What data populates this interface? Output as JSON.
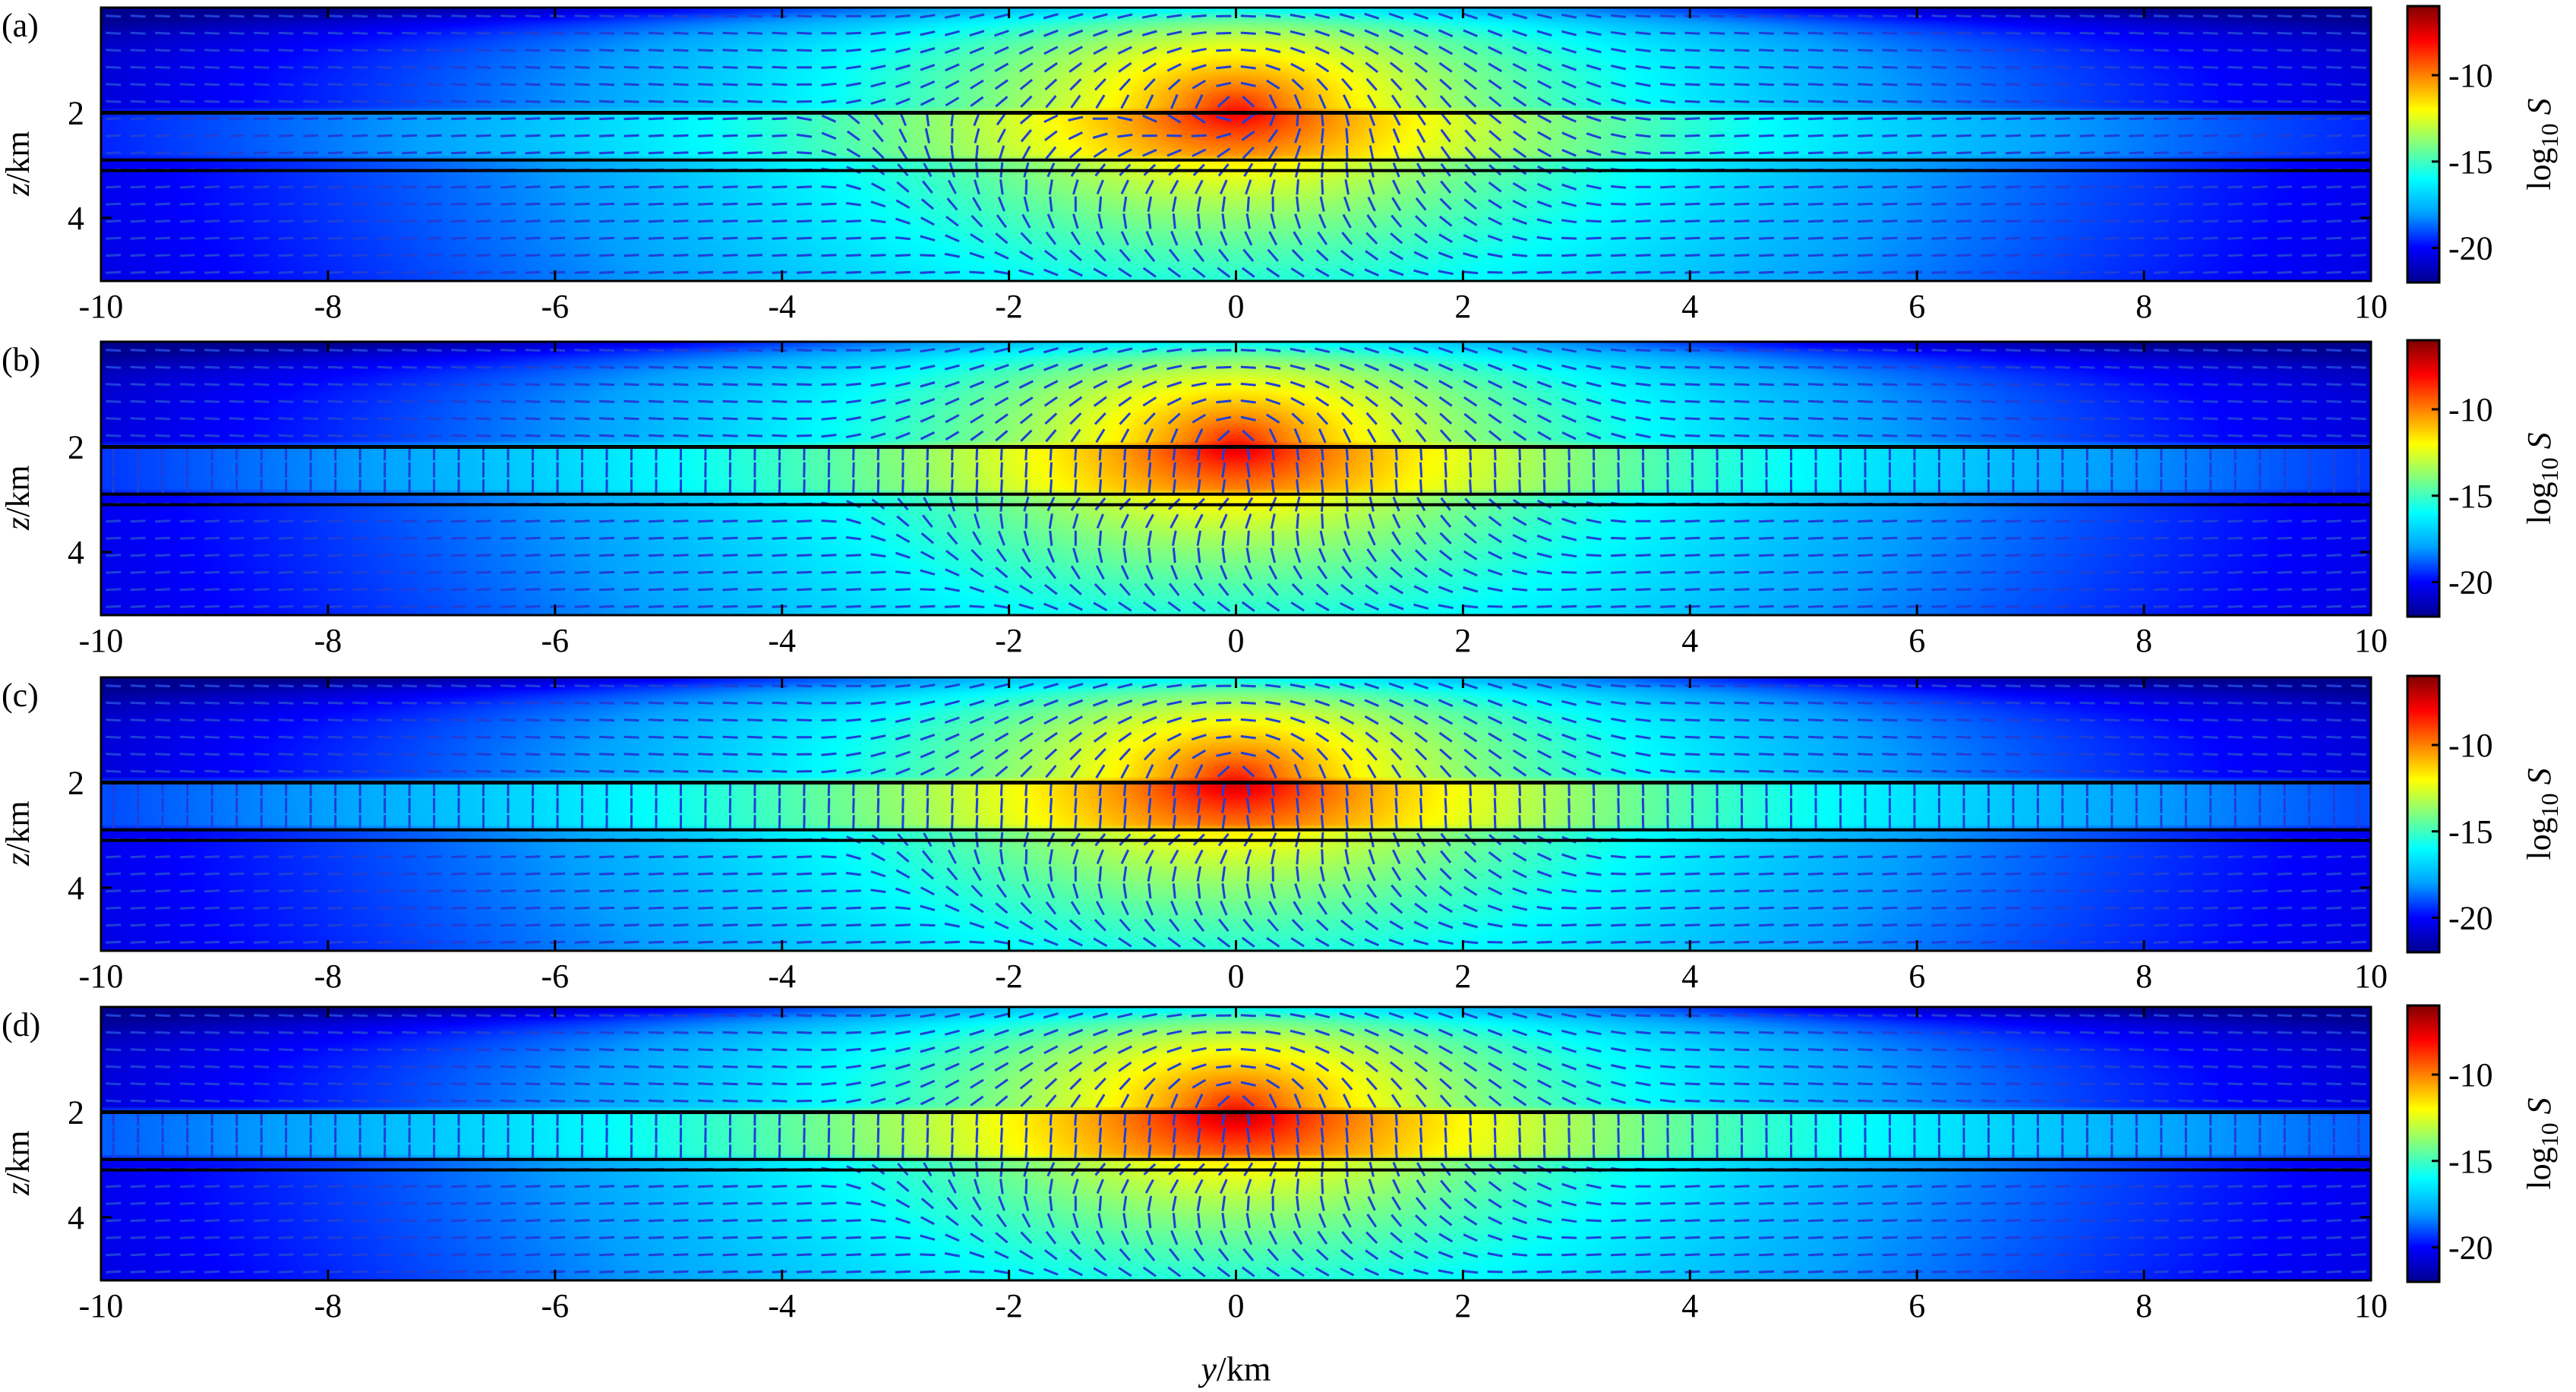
{
  "chart_data": {
    "type": "heatmap",
    "description_note": "",
    "xlabel": "y/km",
    "ylabel": "z/km",
    "colorbar_label": "log10 S",
    "colorbar_label_parts": {
      "base": "log",
      "subscript": "10",
      "variable": "S"
    },
    "xlim": [
      -10,
      10
    ],
    "ylim": [
      5.2,
      0
    ],
    "x_ticks": [
      -10,
      -8,
      -6,
      -4,
      -2,
      0,
      2,
      4,
      6,
      8,
      10
    ],
    "x_tick_labels": [
      "-10",
      "-8",
      "-6",
      "-4",
      "-2",
      "0",
      "2",
      "4",
      "6",
      "8",
      "10"
    ],
    "y_ticks": [
      2,
      4
    ],
    "y_tick_labels": [
      "2",
      "4"
    ],
    "colorbar_range": [
      -22,
      -6
    ],
    "colorbar_ticks": [
      -10,
      -15,
      -20
    ],
    "colorbar_tick_labels": [
      "-10",
      "-15",
      "-20"
    ],
    "colormap": [
      "#00008f",
      "#0000ff",
      "#00a0ff",
      "#00ffff",
      "#80ff80",
      "#ffff00",
      "#ff8000",
      "#ff0000",
      "#800000"
    ],
    "source_position": {
      "y": 0,
      "z": 1.9
    },
    "panels": [
      {
        "label": "(a)",
        "interfaces_z": [
          2.0,
          2.9,
          3.1
        ]
      },
      {
        "label": "(b)",
        "interfaces_z": [
          2.0,
          2.9,
          3.1
        ]
      },
      {
        "label": "(c)",
        "interfaces_z": [
          2.0,
          2.9,
          3.1
        ]
      },
      {
        "label": "(d)",
        "interfaces_z": [
          2.0,
          2.9,
          3.1
        ]
      }
    ]
  }
}
